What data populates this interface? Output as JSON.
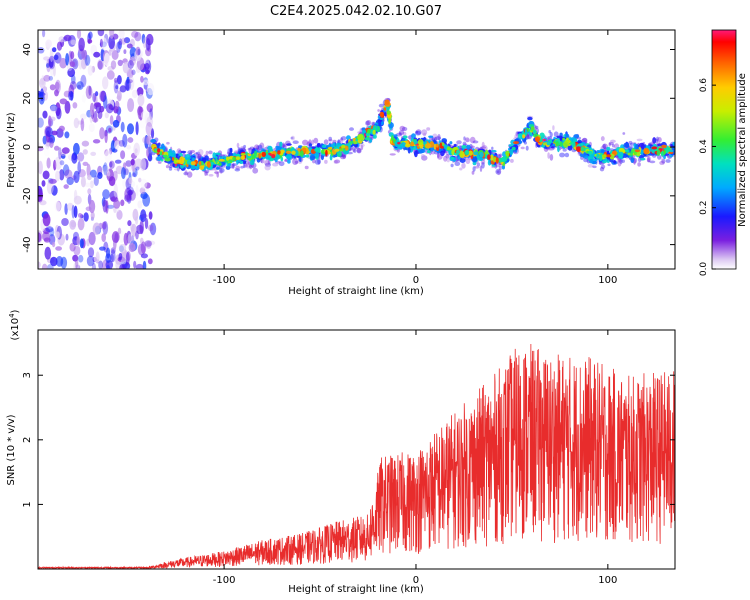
{
  "title": "C2E4.2025.042.02.10.G07",
  "chart_data": [
    {
      "type": "heatmap",
      "xlabel": "Height of straight line (km)",
      "ylabel": "Frequency (Hz)",
      "xlim": [
        -197,
        135
      ],
      "ylim": [
        -50,
        48
      ],
      "xticks": [
        -100,
        0,
        100
      ],
      "yticks": [
        -40,
        -20,
        0,
        20,
        40
      ],
      "colorbar": {
        "label": "Normalized spectral amplitude",
        "range": [
          0,
          0.78
        ],
        "ticks": [
          0.0,
          0.2,
          0.4,
          0.6
        ]
      },
      "noise_region_x": [
        -197,
        -137
      ],
      "ridge": [
        {
          "x": -137,
          "y": 0
        },
        {
          "x": -125,
          "y": -6
        },
        {
          "x": -110,
          "y": -7
        },
        {
          "x": -90,
          "y": -4
        },
        {
          "x": -60,
          "y": -2
        },
        {
          "x": -40,
          "y": -1
        },
        {
          "x": -28,
          "y": 4
        },
        {
          "x": -20,
          "y": 8
        },
        {
          "x": -15,
          "y": 18
        },
        {
          "x": -12,
          "y": 2
        },
        {
          "x": 0,
          "y": 1
        },
        {
          "x": 10,
          "y": 1
        },
        {
          "x": 20,
          "y": -2
        },
        {
          "x": 35,
          "y": -3
        },
        {
          "x": 45,
          "y": -6
        },
        {
          "x": 55,
          "y": 4
        },
        {
          "x": 60,
          "y": 8
        },
        {
          "x": 65,
          "y": 2
        },
        {
          "x": 80,
          "y": 2
        },
        {
          "x": 95,
          "y": -4
        },
        {
          "x": 110,
          "y": -2
        },
        {
          "x": 135,
          "y": -1
        }
      ]
    },
    {
      "type": "line",
      "xlabel": "Height of straight line (km)",
      "ylabel": "SNR (10 * v/v)",
      "ymultiplier": "(x10",
      "ymultiplier_exp": "4",
      "ymultiplier_close": ")",
      "xlim": [
        -197,
        135
      ],
      "ylim": [
        0,
        3.7
      ],
      "xticks": [
        -100,
        0,
        100
      ],
      "yticks": [
        1,
        2,
        3
      ],
      "color": "#e82c2c",
      "envelope": [
        {
          "x": -197,
          "y": 0.02
        },
        {
          "x": -140,
          "y": 0.03
        },
        {
          "x": -125,
          "y": 0.15
        },
        {
          "x": -100,
          "y": 0.28
        },
        {
          "x": -80,
          "y": 0.45
        },
        {
          "x": -60,
          "y": 0.55
        },
        {
          "x": -40,
          "y": 0.75
        },
        {
          "x": -25,
          "y": 0.85
        },
        {
          "x": -18,
          "y": 1.75
        },
        {
          "x": 0,
          "y": 1.85
        },
        {
          "x": 20,
          "y": 2.45
        },
        {
          "x": 40,
          "y": 3.0
        },
        {
          "x": 55,
          "y": 3.55
        },
        {
          "x": 70,
          "y": 3.35
        },
        {
          "x": 90,
          "y": 3.3
        },
        {
          "x": 110,
          "y": 3.0
        },
        {
          "x": 135,
          "y": 3.1
        }
      ]
    }
  ]
}
